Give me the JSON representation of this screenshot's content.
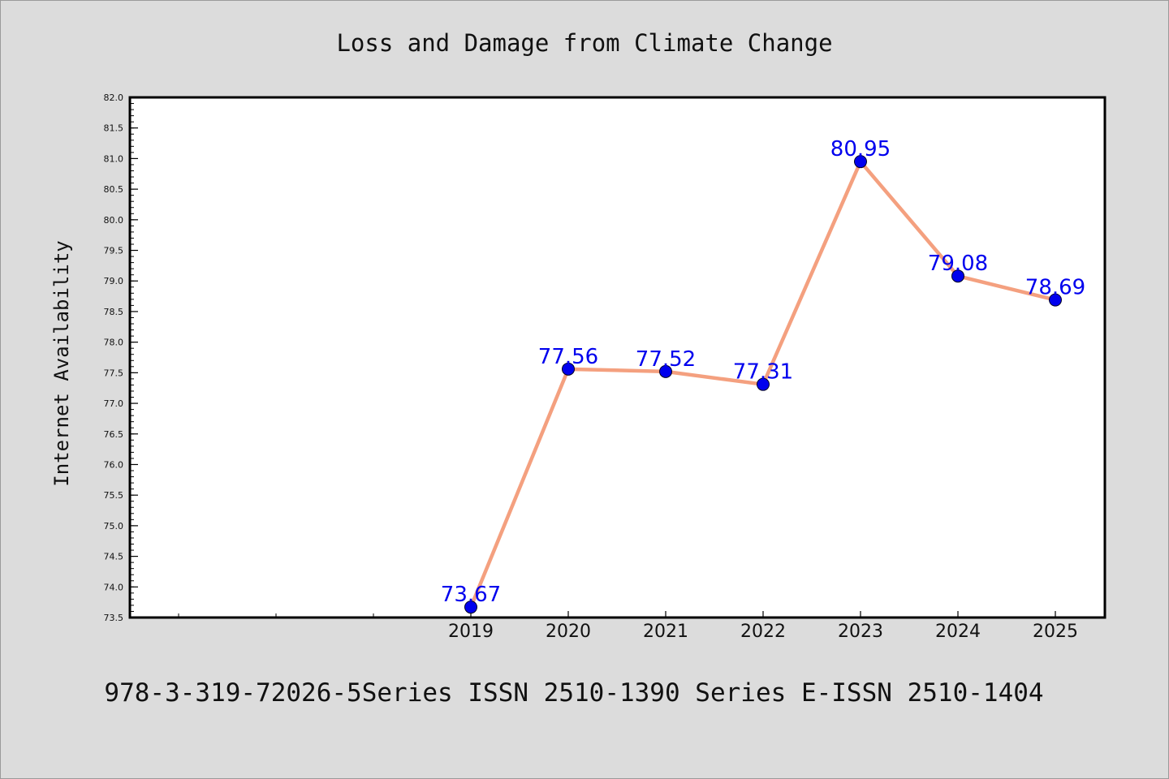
{
  "chart_data": {
    "type": "line",
    "title": "Loss and Damage from Climate Change",
    "ylabel": "Internet Availability",
    "xlabel": "",
    "x": [
      "2019",
      "2020",
      "2021",
      "2022",
      "2023",
      "2024",
      "2025"
    ],
    "series": [
      {
        "values": [
          73.67,
          77.56,
          77.52,
          77.31,
          80.95,
          79.08,
          78.69
        ]
      }
    ],
    "data_labels": [
      "73.67",
      "77.56",
      "77.52",
      "77.31",
      "80.95",
      "79.08",
      "78.69"
    ],
    "ylim": [
      73.5,
      82.0
    ],
    "y_ticks": [
      "73.5",
      "74.0",
      "74.5",
      "75.0",
      "75.5",
      "76.0",
      "76.5",
      "77.0",
      "77.5",
      "78.0",
      "78.5",
      "79.0",
      "79.5",
      "80.0",
      "80.5",
      "81.0",
      "81.5",
      "82.0"
    ],
    "grid": false,
    "line_color": "#f4a07f",
    "marker_color": "#0000ee",
    "label_color": "#0000ee"
  },
  "footer": {
    "text": "978-3-319-72026-5Series ISSN 2510-1390 Series E-ISSN 2510-1404"
  }
}
